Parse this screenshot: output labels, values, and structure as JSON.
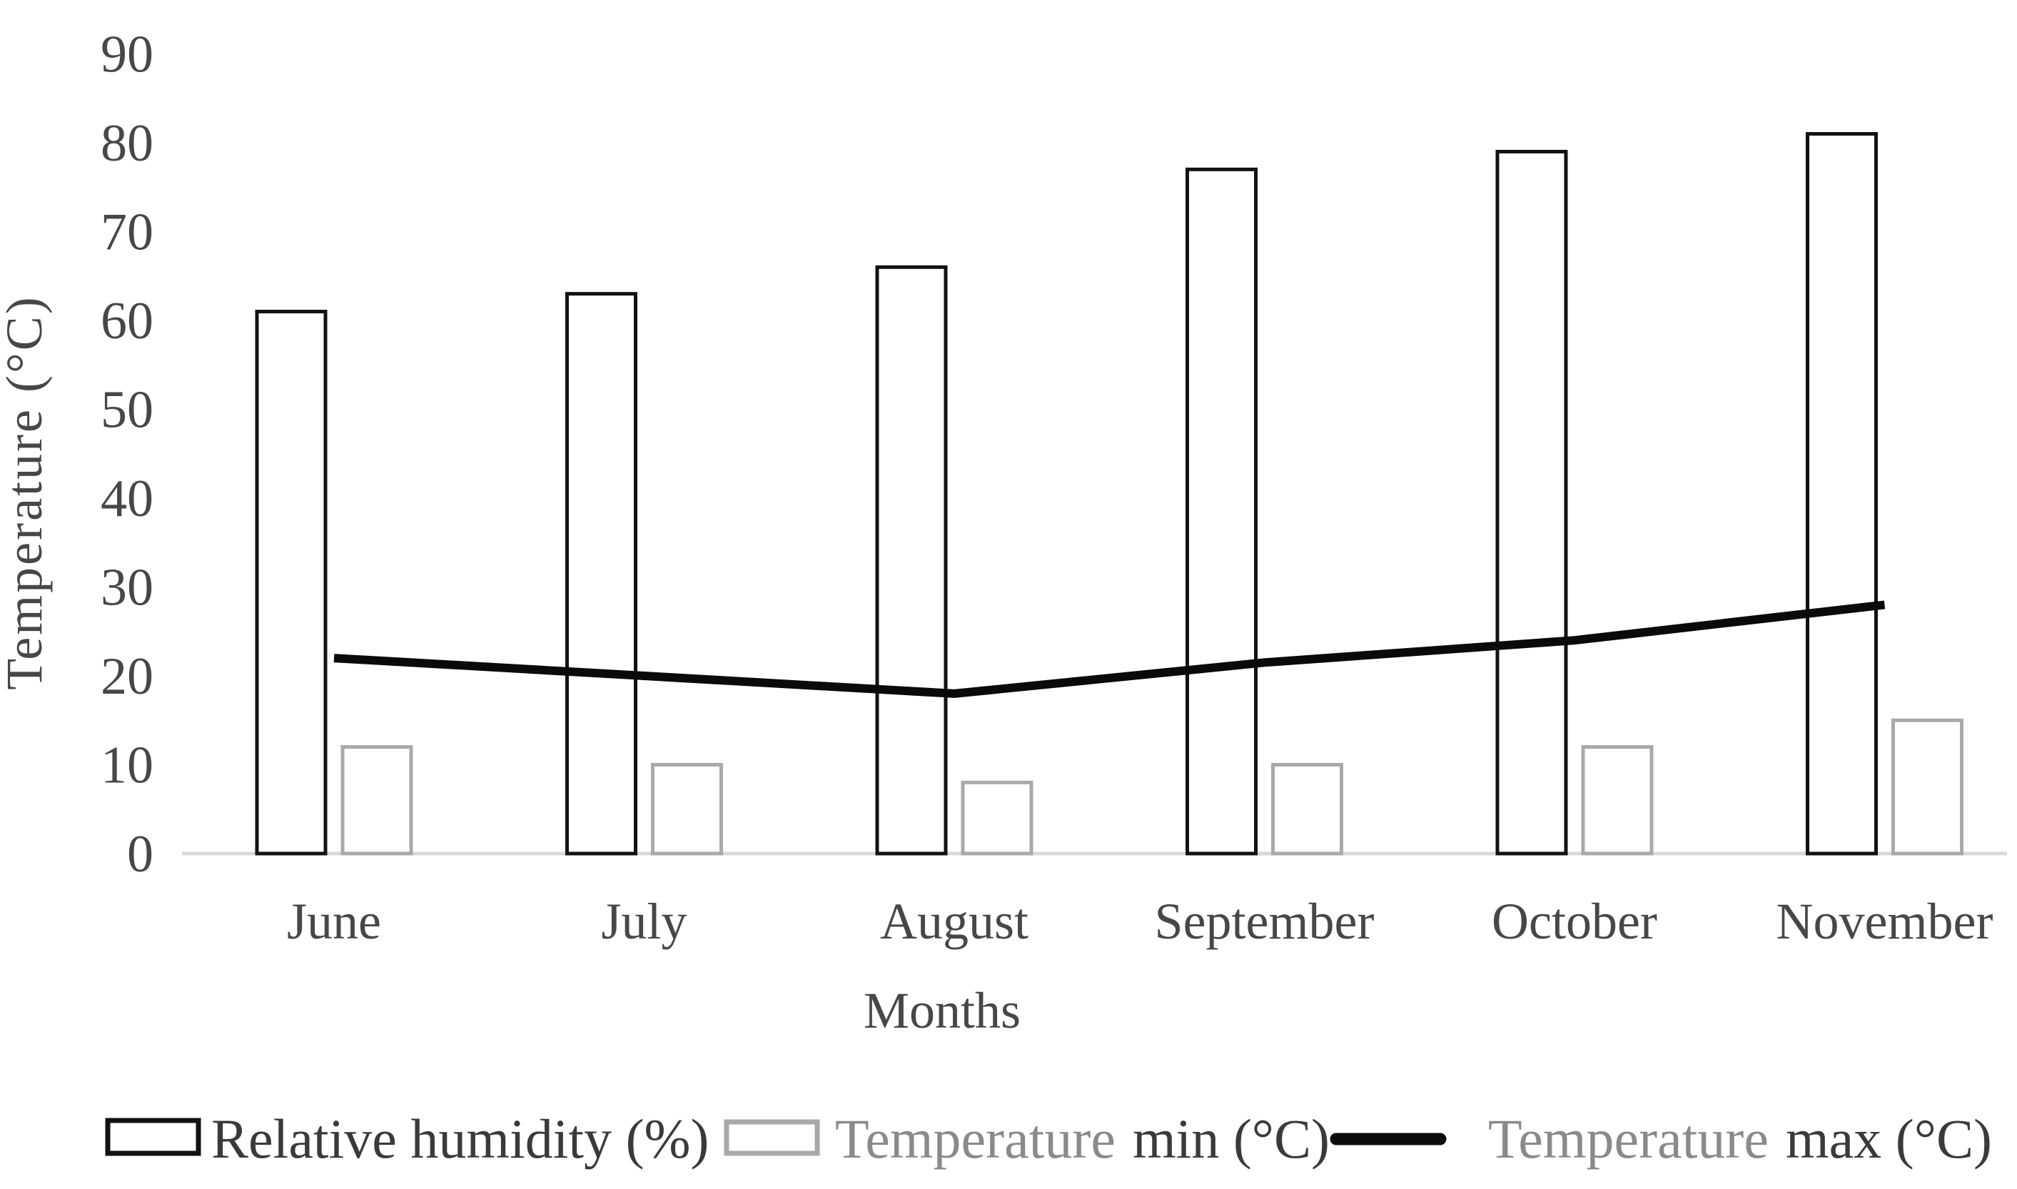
{
  "figure": {
    "y_axis_title": "Temperature (°C)",
    "x_axis_title": "Months"
  },
  "legend": {
    "rh_label": "Relative humidity (%)",
    "tmin_prefix": "Temperature",
    "tmin_suffix": "min (°C)",
    "tmax_prefix": "Temperature",
    "tmax_suffix": "max (°C)"
  },
  "palette": {
    "rh_bar_outline": "#121212",
    "tmin_bar_outline": "#a9a9a9",
    "tmax_line": "#0a0a0a",
    "axis_line": "#d9d9d9",
    "text": "#474747",
    "legend_text_gray": "#8a8a8a",
    "legend_text_dark": "#3a3a3a",
    "background": "#ffffff"
  },
  "chart_data": {
    "type": "bar",
    "categories": [
      "June",
      "July",
      "August",
      "September",
      "October",
      "November"
    ],
    "series": [
      {
        "name": "Relative humidity (%)",
        "type": "bar",
        "values": [
          61,
          63,
          66,
          77,
          79,
          81
        ]
      },
      {
        "name": "Temperature min (°C)",
        "type": "bar",
        "values": [
          12,
          10,
          8,
          10,
          12,
          15
        ]
      },
      {
        "name": "Temperature max (°C)",
        "type": "line",
        "values": [
          22,
          20,
          18,
          21.5,
          24,
          28
        ]
      }
    ],
    "xlabel": "Months",
    "ylabel": "Temperature (°C)",
    "ylim": [
      0,
      90
    ],
    "yticks": [
      0,
      10,
      20,
      30,
      40,
      50,
      60,
      70,
      80,
      90
    ],
    "grid": false,
    "legend_position": "bottom"
  }
}
